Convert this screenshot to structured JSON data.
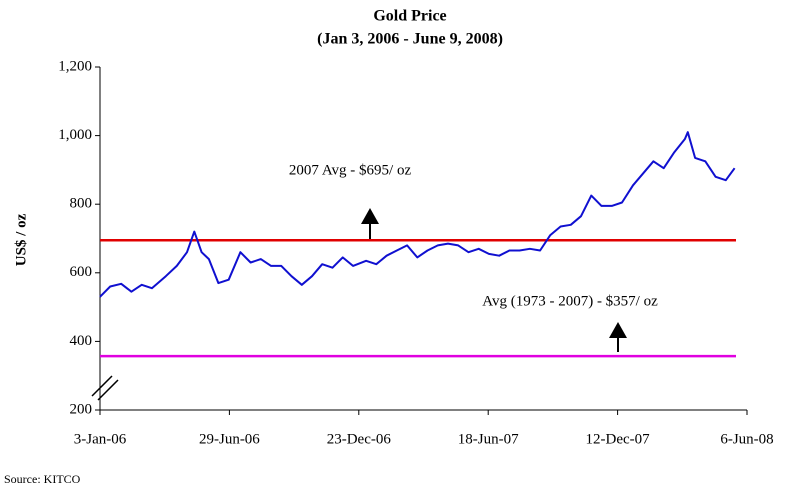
{
  "chart_data": {
    "type": "line",
    "title": "Gold Price",
    "subtitle": "(Jan 3, 2006 - June 9, 2008)",
    "y_label": "US$ / oz",
    "source": "Source: KITCO",
    "x": [
      "2006-01-03",
      "2006-01-17",
      "2006-02-01",
      "2006-02-15",
      "2006-03-01",
      "2006-03-15",
      "2006-04-03",
      "2006-04-18",
      "2006-05-02",
      "2006-05-12",
      "2006-05-22",
      "2006-06-01",
      "2006-06-14",
      "2006-06-28",
      "2006-07-14",
      "2006-07-28",
      "2006-08-11",
      "2006-08-25",
      "2006-09-08",
      "2006-09-22",
      "2006-10-06",
      "2006-10-20",
      "2006-11-03",
      "2006-11-17",
      "2006-12-01",
      "2006-12-15",
      "2007-01-02",
      "2007-01-16",
      "2007-01-30",
      "2007-02-13",
      "2007-02-27",
      "2007-03-13",
      "2007-03-27",
      "2007-04-10",
      "2007-04-24",
      "2007-05-08",
      "2007-05-22",
      "2007-06-05",
      "2007-06-19",
      "2007-07-03",
      "2007-07-17",
      "2007-07-31",
      "2007-08-14",
      "2007-08-28",
      "2007-09-11",
      "2007-09-25",
      "2007-10-09",
      "2007-10-23",
      "2007-11-06",
      "2007-11-20",
      "2007-12-04",
      "2007-12-18",
      "2008-01-02",
      "2008-01-16",
      "2008-01-30",
      "2008-02-13",
      "2008-02-27",
      "2008-03-13",
      "2008-03-17",
      "2008-03-27",
      "2008-04-10",
      "2008-04-24",
      "2008-05-08",
      "2008-05-20"
    ],
    "series": [
      {
        "name": "Gold Price",
        "color": "#1010d0",
        "values": [
          530,
          560,
          568,
          545,
          565,
          555,
          590,
          620,
          660,
          720,
          660,
          640,
          570,
          580,
          660,
          630,
          640,
          620,
          620,
          590,
          565,
          590,
          625,
          615,
          645,
          620,
          635,
          625,
          650,
          665,
          680,
          645,
          665,
          680,
          685,
          680,
          660,
          670,
          655,
          650,
          665,
          665,
          670,
          665,
          710,
          735,
          740,
          765,
          825,
          795,
          795,
          805,
          855,
          890,
          925,
          905,
          950,
          990,
          1010,
          935,
          925,
          880,
          870,
          905
        ]
      }
    ],
    "reference_lines": [
      {
        "value": 695,
        "color": "#e00000"
      },
      {
        "value": 357,
        "color": "#e000e0"
      }
    ],
    "annotations": [
      "2007 Avg - $695/ oz",
      "Avg (1973 - 2007) - $357/ oz"
    ],
    "xlim": [
      "2006-01-03",
      "2008-06-06"
    ],
    "xticks": [
      {
        "value": "2006-01-03",
        "label": "3-Jan-06"
      },
      {
        "value": "2006-06-29",
        "label": "29-Jun-06"
      },
      {
        "value": "2006-12-23",
        "label": "23-Dec-06"
      },
      {
        "value": "2007-06-18",
        "label": "18-Jun-07"
      },
      {
        "value": "2007-12-12",
        "label": "12-Dec-07"
      },
      {
        "value": "2008-06-06",
        "label": "6-Jun-08"
      }
    ],
    "ylim": [
      200,
      1200
    ],
    "yticks": [
      {
        "value": 200,
        "label": "200"
      },
      {
        "value": 400,
        "label": "400"
      },
      {
        "value": 600,
        "label": "600"
      },
      {
        "value": 800,
        "label": "800"
      },
      {
        "value": 1000,
        "label": "1,000"
      },
      {
        "value": 1200,
        "label": "1,200"
      }
    ]
  }
}
